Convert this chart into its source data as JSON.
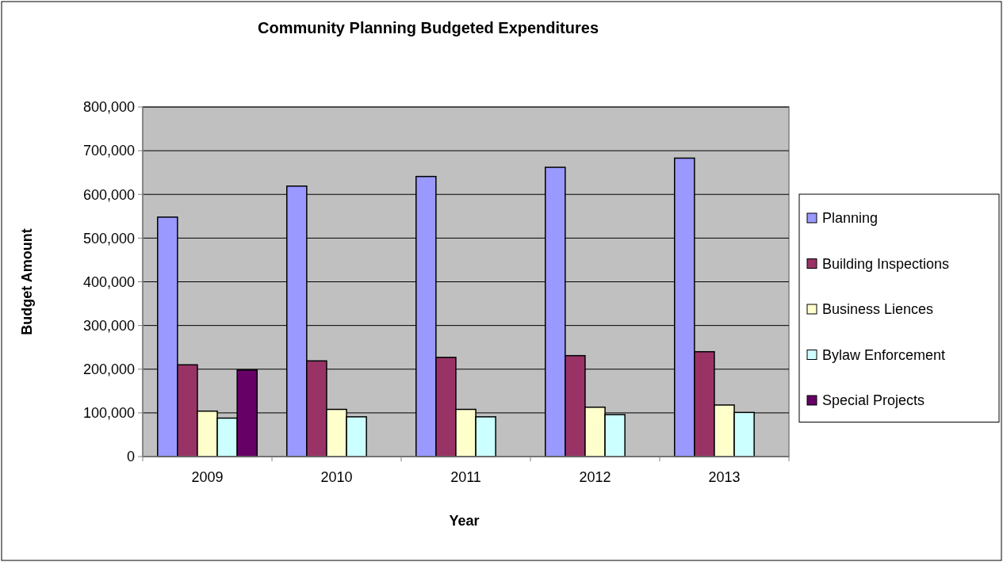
{
  "chart_data": {
    "type": "bar",
    "title": "Community Planning Budgeted Expenditures",
    "xlabel": "Year",
    "ylabel": "Budget Amount",
    "categories": [
      "2009",
      "2010",
      "2011",
      "2012",
      "2013"
    ],
    "series": [
      {
        "name": "Planning",
        "color": "#9999ff",
        "values": [
          548000,
          619000,
          641000,
          662000,
          683000
        ]
      },
      {
        "name": "Building Inspections",
        "color": "#993366",
        "values": [
          210000,
          219000,
          227000,
          231000,
          240000
        ]
      },
      {
        "name": "Business Liences",
        "color": "#ffffcc",
        "values": [
          104000,
          108000,
          108000,
          113000,
          118000
        ]
      },
      {
        "name": "Bylaw Enforcement",
        "color": "#ccffff",
        "values": [
          88000,
          91000,
          91000,
          96000,
          101000
        ]
      },
      {
        "name": "Special Projects",
        "color": "#660066",
        "values": [
          198000,
          null,
          null,
          null,
          null
        ]
      }
    ],
    "ylim": [
      0,
      800000
    ],
    "yticks": [
      {
        "value": 0,
        "label": "0"
      },
      {
        "value": 100000,
        "label": "100,000"
      },
      {
        "value": 200000,
        "label": "200,000"
      },
      {
        "value": 300000,
        "label": "300,000"
      },
      {
        "value": 400000,
        "label": "400,000"
      },
      {
        "value": 500000,
        "label": "500,000"
      },
      {
        "value": 600000,
        "label": "600,000"
      },
      {
        "value": 700000,
        "label": "700,000"
      },
      {
        "value": 800000,
        "label": "800,000"
      }
    ],
    "grid": "y",
    "legend": "right"
  }
}
